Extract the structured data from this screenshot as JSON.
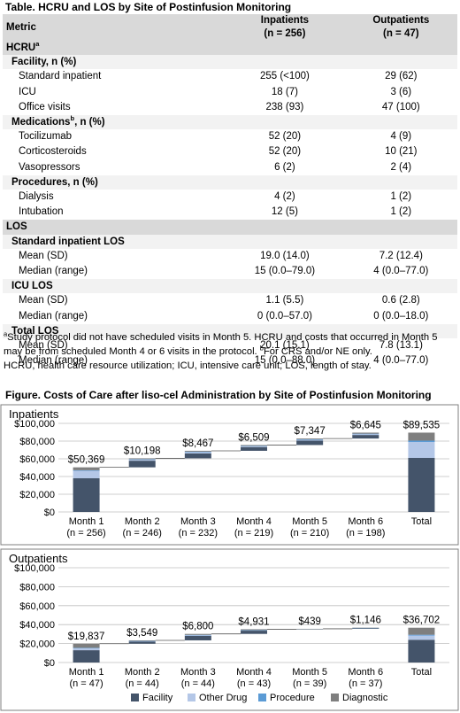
{
  "table": {
    "title": "Table. HCRU and LOS by Site of Postinfusion Monitoring",
    "col_metric": "Metric",
    "col_in": "Inpatients",
    "col_in_n": "(n = 256)",
    "col_out": "Outpatients",
    "col_out_n": "(n = 47)",
    "rows": [
      {
        "kind": "lvl0",
        "label": "HCRU",
        "sup": "a",
        "in": "",
        "out": ""
      },
      {
        "kind": "lvl1",
        "label": "Facility, n (%)",
        "sup": "",
        "in": "",
        "out": ""
      },
      {
        "kind": "dat",
        "label": "Standard inpatient",
        "sup": "",
        "in": "255 (<100)",
        "out": "29 (62)"
      },
      {
        "kind": "dat",
        "label": "ICU",
        "sup": "",
        "in": "18 (7)",
        "out": "3 (6)"
      },
      {
        "kind": "dat",
        "label": "Office visits",
        "sup": "",
        "in": "238 (93)",
        "out": "47 (100)"
      },
      {
        "kind": "lvl1",
        "label": "Medications",
        "sup": "b",
        "label2": ", n (%)",
        "in": "",
        "out": ""
      },
      {
        "kind": "dat",
        "label": "Tocilizumab",
        "sup": "",
        "in": "52 (20)",
        "out": "4 (9)"
      },
      {
        "kind": "dat",
        "label": "Corticosteroids",
        "sup": "",
        "in": "52 (20)",
        "out": "10 (21)"
      },
      {
        "kind": "dat",
        "label": "Vasopressors",
        "sup": "",
        "in": "6 (2)",
        "out": "2 (4)"
      },
      {
        "kind": "lvl1",
        "label": "Procedures, n (%)",
        "sup": "",
        "in": "",
        "out": ""
      },
      {
        "kind": "dat",
        "label": "Dialysis",
        "sup": "",
        "in": "4 (2)",
        "out": "1 (2)"
      },
      {
        "kind": "dat",
        "label": "Intubation",
        "sup": "",
        "in": "12 (5)",
        "out": "1 (2)"
      },
      {
        "kind": "lvl0",
        "label": "LOS",
        "sup": "",
        "in": "",
        "out": ""
      },
      {
        "kind": "lvl1",
        "label": "Standard inpatient LOS",
        "sup": "",
        "in": "",
        "out": ""
      },
      {
        "kind": "dat",
        "label": "Mean (SD)",
        "sup": "",
        "in": "19.0 (14.0)",
        "out": "7.2 (12.4)"
      },
      {
        "kind": "dat",
        "label": "Median (range)",
        "sup": "",
        "in": "15 (0.0–79.0)",
        "out": "4 (0.0–77.0)"
      },
      {
        "kind": "lvl1",
        "label": "ICU LOS",
        "sup": "",
        "in": "",
        "out": ""
      },
      {
        "kind": "dat",
        "label": "Mean (SD)",
        "sup": "",
        "in": "1.1 (5.5)",
        "out": "0.6 (2.8)"
      },
      {
        "kind": "dat",
        "label": "Median (range)",
        "sup": "",
        "in": "0 (0.0–57.0)",
        "out": "0 (0.0–18.0)"
      },
      {
        "kind": "lvl1",
        "label": "Total LOS",
        "sup": "",
        "in": "",
        "out": ""
      },
      {
        "kind": "dat",
        "label": "Mean (SD)",
        "sup": "",
        "in": "20.1 (15.1)",
        "out": "7.8 (13.1)"
      },
      {
        "kind": "dat",
        "label": "Median (range)",
        "sup": "",
        "in": "15 (0.0–88.0)",
        "out": "4 (0.0–77.0)"
      }
    ]
  },
  "footnote": {
    "a_mark": "a",
    "a_text": "Study protocol did not have scheduled visits in Month 5. HCRU and costs that occurred in Month 5 may be from scheduled Month 4 or 6 visits in the protocol. ",
    "b_mark": "b",
    "b_text": "For CRS and/or NE only.",
    "abbrev": "HCRU, health care resource utilization; ICU, intensive care unit; LOS, length of stay."
  },
  "figure_title": "Figure. Costs of Care after liso-cel Administration by Site of Postinfusion Monitoring",
  "colors": {
    "facility": "#44546a",
    "other_drug": "#b4c7e7",
    "procedure": "#5b9bd5",
    "diagnostic": "#7f7f7f",
    "connector": "#595959",
    "grid": "#bfbfbf",
    "header_bg": "#d9d9d9",
    "subheader_bg": "#f2f2f2"
  },
  "chart_data": [
    {
      "type": "bar",
      "subtype": "waterfall-stacked",
      "title": "Inpatients",
      "categories": [
        "Month 1",
        "Month 2",
        "Month 3",
        "Month 4",
        "Month 5",
        "Month 6",
        "Total"
      ],
      "category_n": [
        "(n = 256)",
        "(n = 246)",
        "(n = 232)",
        "(n = 219)",
        "(n = 210)",
        "(n = 198)",
        ""
      ],
      "series": [
        {
          "name": "Facility",
          "values": [
            38000,
            7500,
            5500,
            4200,
            5000,
            4000,
            61000
          ]
        },
        {
          "name": "Other Drug",
          "values": [
            8500,
            1600,
            1800,
            1200,
            1300,
            1300,
            18000
          ]
        },
        {
          "name": "Procedure",
          "values": [
            600,
            200,
            200,
            150,
            150,
            150,
            1500
          ]
        },
        {
          "name": "Diagnostic",
          "values": [
            3269,
            898,
            967,
            959,
            897,
            1195,
            9035
          ]
        }
      ],
      "data_labels": [
        "$50,369",
        "$10,198",
        "$8,467",
        "$6,509",
        "$7,347",
        "$6,645",
        "$89,535"
      ],
      "yticks": [
        "$0",
        "$20,000",
        "$40,000",
        "$60,000",
        "$80,000",
        "$100,000"
      ],
      "ylim": [
        0,
        100000
      ],
      "grid": true
    },
    {
      "type": "bar",
      "subtype": "waterfall-stacked",
      "title": "Outpatients",
      "categories": [
        "Month 1",
        "Month 2",
        "Month 3",
        "Month 4",
        "Month 5",
        "Month 6",
        "Total"
      ],
      "category_n": [
        "(n = 47)",
        "(n = 44)",
        "(n = 44)",
        "(n = 43)",
        "(n = 39)",
        "(n = 37)",
        ""
      ],
      "series": [
        {
          "name": "Facility",
          "values": [
            13000,
            2300,
            4800,
            3400,
            250,
            750,
            24000
          ]
        },
        {
          "name": "Other Drug",
          "values": [
            2200,
            500,
            800,
            500,
            100,
            200,
            4500
          ]
        },
        {
          "name": "Procedure",
          "values": [
            300,
            100,
            200,
            100,
            30,
            50,
            800
          ]
        },
        {
          "name": "Diagnostic",
          "values": [
            4337,
            649,
            1000,
            931,
            59,
            146,
            7402
          ]
        }
      ],
      "data_labels": [
        "$19,837",
        "$3,549",
        "$6,800",
        "$4,931",
        "$439",
        "$1,146",
        "$36,702"
      ],
      "yticks": [
        "$0",
        "$20,000",
        "$40,000",
        "$60,000",
        "$80,000",
        "$100,000"
      ],
      "ylim": [
        0,
        100000
      ],
      "grid": true,
      "legend": [
        "Facility",
        "Other Drug",
        "Procedure",
        "Diagnostic"
      ],
      "legend_position": "bottom"
    }
  ]
}
